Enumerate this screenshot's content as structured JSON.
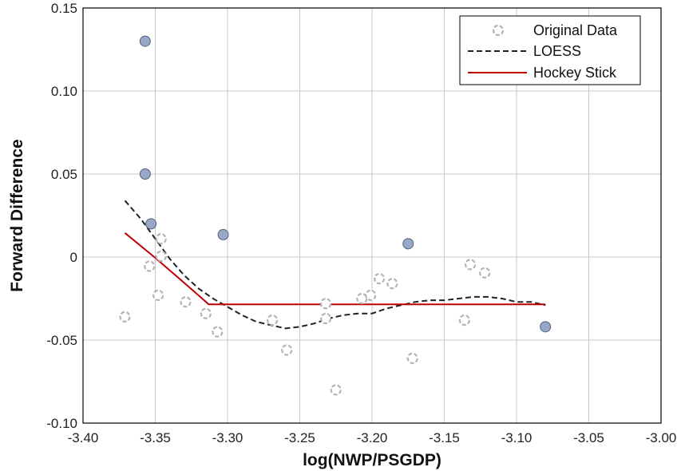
{
  "chart_data": {
    "type": "scatter",
    "xlabel": "log(NWP/PSGDP)",
    "ylabel": "Forward Difference",
    "xlim": [
      -3.4,
      -3.0
    ],
    "ylim": [
      -0.1,
      0.15
    ],
    "x_ticks": [
      "-3.40",
      "-3.35",
      "-3.30",
      "-3.25",
      "-3.20",
      "-3.15",
      "-3.10",
      "-3.05",
      "-3.00"
    ],
    "y_ticks": [
      "-0.10",
      "-0.05",
      "0",
      "0.05",
      "0.10",
      "0.15"
    ],
    "grid": true,
    "legend_position": "top-right",
    "legend": [
      "Original Data",
      "LOESS",
      "Hockey Stick"
    ],
    "colors": {
      "open_point_edge": "#b4b4b4",
      "filled_point": "#98a8c8",
      "filled_point_edge": "#55607a",
      "loess": "#222222",
      "hockey": "#c00000",
      "grid": "#c8c8c8"
    },
    "series": [
      {
        "name": "Original Data",
        "kind": "scatter-open",
        "points": [
          [
            -3.371,
            -0.036
          ],
          [
            -3.354,
            -0.0055
          ],
          [
            -3.348,
            -0.023
          ],
          [
            -3.346,
            0.011
          ],
          [
            -3.346,
            0.0005
          ],
          [
            -3.329,
            -0.027
          ],
          [
            -3.315,
            -0.034
          ],
          [
            -3.307,
            -0.045
          ],
          [
            -3.269,
            -0.038
          ],
          [
            -3.259,
            -0.056
          ],
          [
            -3.232,
            -0.037
          ],
          [
            -3.232,
            -0.028
          ],
          [
            -3.225,
            -0.08
          ],
          [
            -3.207,
            -0.025
          ],
          [
            -3.201,
            -0.023
          ],
          [
            -3.195,
            -0.013
          ],
          [
            -3.186,
            -0.016
          ],
          [
            -3.172,
            -0.061
          ],
          [
            -3.136,
            -0.038
          ],
          [
            -3.132,
            -0.0045
          ],
          [
            -3.122,
            -0.0095
          ]
        ]
      },
      {
        "name": "Original Data",
        "kind": "scatter-filled",
        "points": [
          [
            -3.357,
            0.13
          ],
          [
            -3.357,
            0.05
          ],
          [
            -3.353,
            0.02
          ],
          [
            -3.303,
            0.0135
          ],
          [
            -3.175,
            0.008
          ],
          [
            -3.08,
            -0.042
          ]
        ]
      },
      {
        "name": "LOESS",
        "kind": "line-dashed",
        "points": [
          [
            -3.371,
            0.034
          ],
          [
            -3.36,
            0.023
          ],
          [
            -3.35,
            0.011
          ],
          [
            -3.34,
            -0.001
          ],
          [
            -3.33,
            -0.011
          ],
          [
            -3.32,
            -0.019
          ],
          [
            -3.31,
            -0.025
          ],
          [
            -3.3,
            -0.03
          ],
          [
            -3.29,
            -0.035
          ],
          [
            -3.28,
            -0.039
          ],
          [
            -3.27,
            -0.041
          ],
          [
            -3.26,
            -0.043
          ],
          [
            -3.25,
            -0.042
          ],
          [
            -3.24,
            -0.04
          ],
          [
            -3.23,
            -0.037
          ],
          [
            -3.22,
            -0.035
          ],
          [
            -3.21,
            -0.034
          ],
          [
            -3.2,
            -0.034
          ],
          [
            -3.19,
            -0.031
          ],
          [
            -3.18,
            -0.029
          ],
          [
            -3.17,
            -0.027
          ],
          [
            -3.16,
            -0.026
          ],
          [
            -3.15,
            -0.026
          ],
          [
            -3.14,
            -0.025
          ],
          [
            -3.13,
            -0.024
          ],
          [
            -3.12,
            -0.024
          ],
          [
            -3.11,
            -0.025
          ],
          [
            -3.1,
            -0.027
          ],
          [
            -3.09,
            -0.027
          ],
          [
            -3.08,
            -0.029
          ]
        ]
      },
      {
        "name": "Hockey Stick",
        "kind": "line-solid",
        "points": [
          [
            -3.371,
            0.0145
          ],
          [
            -3.35,
            -0.0005
          ],
          [
            -3.33,
            -0.0155
          ],
          [
            -3.313,
            -0.0285
          ],
          [
            -3.08,
            -0.0285
          ]
        ]
      }
    ]
  }
}
